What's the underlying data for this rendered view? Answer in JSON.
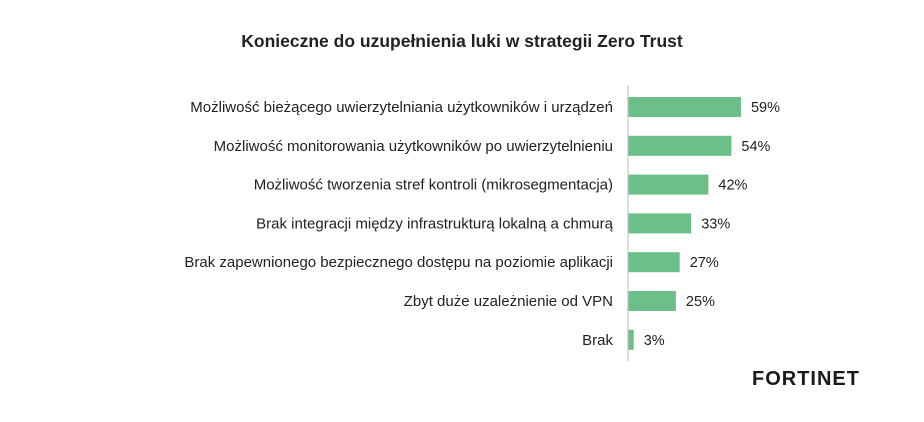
{
  "chart_data": {
    "type": "bar",
    "orientation": "horizontal",
    "title": "Konieczne do uzupełnienia luki w strategii Zero Trust",
    "categories": [
      "Możliwość bieżącego uwierzytelniania użytkowników i urządzeń",
      "Możliwość monitorowania użytkowników po uwierzytelnieniu",
      "Możliwość tworzenia stref kontroli (mikrosegmentacja)",
      "Brak integracji między infrastrukturą lokalną a chmurą",
      "Brak zapewnionego bezpiecznego dostępu na poziomie aplikacji",
      "Zbyt duże uzależnienie od VPN",
      "Brak"
    ],
    "values": [
      59,
      54,
      42,
      33,
      27,
      25,
      3
    ],
    "value_labels": [
      "59%",
      "54%",
      "42%",
      "33%",
      "27%",
      "25%",
      "3%"
    ],
    "unit": "%",
    "xlim": [
      0,
      100
    ],
    "grid": false,
    "legend": "none",
    "bar_color": "#6dbf8a"
  },
  "brand": {
    "logo_text": "FORTINET",
    "logo_color": "#1a1a1a"
  }
}
